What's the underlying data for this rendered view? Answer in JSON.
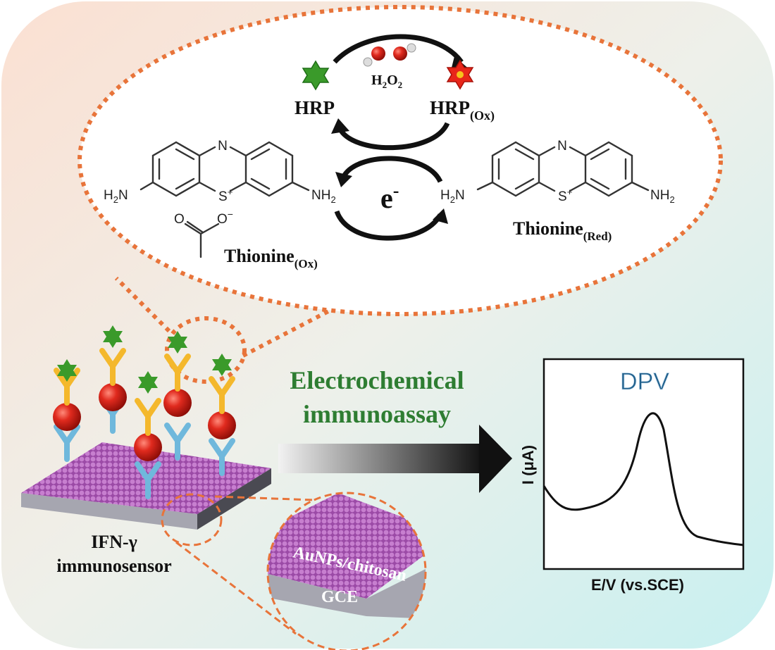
{
  "cycle": {
    "hrp": "HRP",
    "hrp_ox": [
      "HRP",
      "(Ox)"
    ],
    "h2o2": [
      "H",
      "2",
      "O",
      "2"
    ],
    "electron": [
      "e",
      "-"
    ]
  },
  "thionine_ox": {
    "label": [
      "Thionine",
      "(Ox)"
    ],
    "n": "N",
    "s": [
      "S",
      "+"
    ],
    "amine_left": [
      "H",
      "2",
      "N"
    ],
    "amine_right": [
      "NH",
      "2"
    ],
    "acetate_o": "O",
    "acetate_o_minus": [
      "O",
      "−"
    ]
  },
  "thionine_red": {
    "label": [
      "Thionine",
      "(Red)"
    ],
    "n": "N",
    "s": [
      "S",
      "+"
    ],
    "amine_left": [
      "H",
      "2",
      "N"
    ],
    "amine_right": [
      "NH",
      "2"
    ]
  },
  "assay": [
    "Electrochemical",
    "immunoassay"
  ],
  "sensor": {
    "label": [
      "IFN-γ",
      "immunosensor"
    ],
    "layer": "AuNPs/chitosan",
    "electrode": "GCE"
  },
  "dpv": {
    "title": "DPV",
    "y_label": "I (μA)",
    "x_label": "E/V (vs.SCE)"
  }
}
